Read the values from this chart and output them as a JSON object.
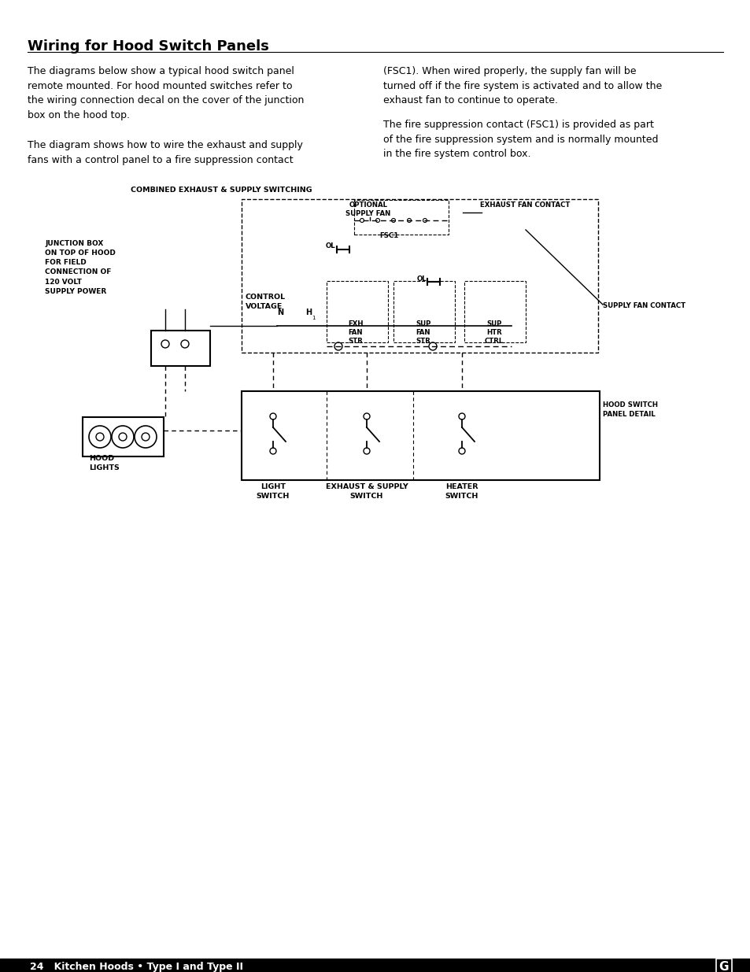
{
  "title": "Wiring for Hood Switch Panels",
  "body_text_left_1": "The diagrams below show a typical hood switch panel\nremote mounted. For hood mounted switches refer to\nthe wiring connection decal on the cover of the junction\nbox on the hood top.",
  "body_text_left_2": "The diagram shows how to wire the exhaust and supply\nfans with a control panel to a fire suppression contact",
  "body_text_right_1": "(FSC1). When wired properly, the supply fan will be\nturned off if the fire system is activated and to allow the\nexhaust fan to continue to operate.",
  "body_text_right_2": "The fire suppression contact (FSC1) is provided as part\nof the fire suppression system and is normally mounted\nin the fire system control box.",
  "diagram_title": "COMBINED EXHAUST & SUPPLY SWITCHING",
  "footer_text": "24   Kitchen Hoods • Type I and Type II",
  "bg_color": "#ffffff",
  "text_color": "#000000",
  "line_color": "#000000"
}
